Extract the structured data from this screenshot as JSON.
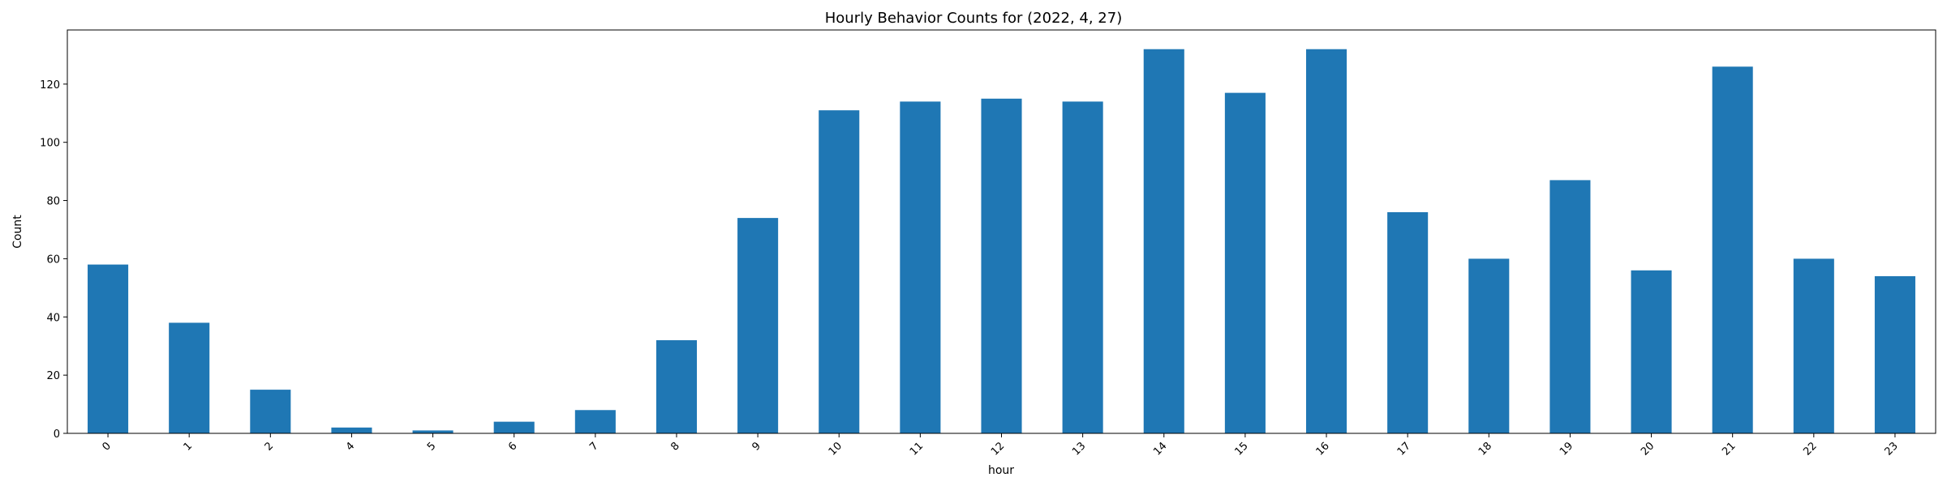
{
  "chart_data": {
    "type": "bar",
    "title": "Hourly Behavior Counts for (2022, 4, 27)",
    "xlabel": "hour",
    "ylabel": "Count",
    "categories": [
      "0",
      "1",
      "2",
      "4",
      "5",
      "6",
      "7",
      "8",
      "9",
      "10",
      "11",
      "12",
      "13",
      "14",
      "15",
      "16",
      "17",
      "18",
      "19",
      "20",
      "21",
      "22",
      "23"
    ],
    "values": [
      58,
      38,
      15,
      2,
      1,
      4,
      8,
      32,
      74,
      111,
      114,
      115,
      114,
      132,
      117,
      132,
      76,
      60,
      87,
      56,
      126,
      60,
      54
    ],
    "ylim": [
      0,
      138.6
    ],
    "yticks": [
      0,
      20,
      40,
      60,
      80,
      100,
      120
    ],
    "grid": false,
    "bar_color": "#1f77b4"
  }
}
